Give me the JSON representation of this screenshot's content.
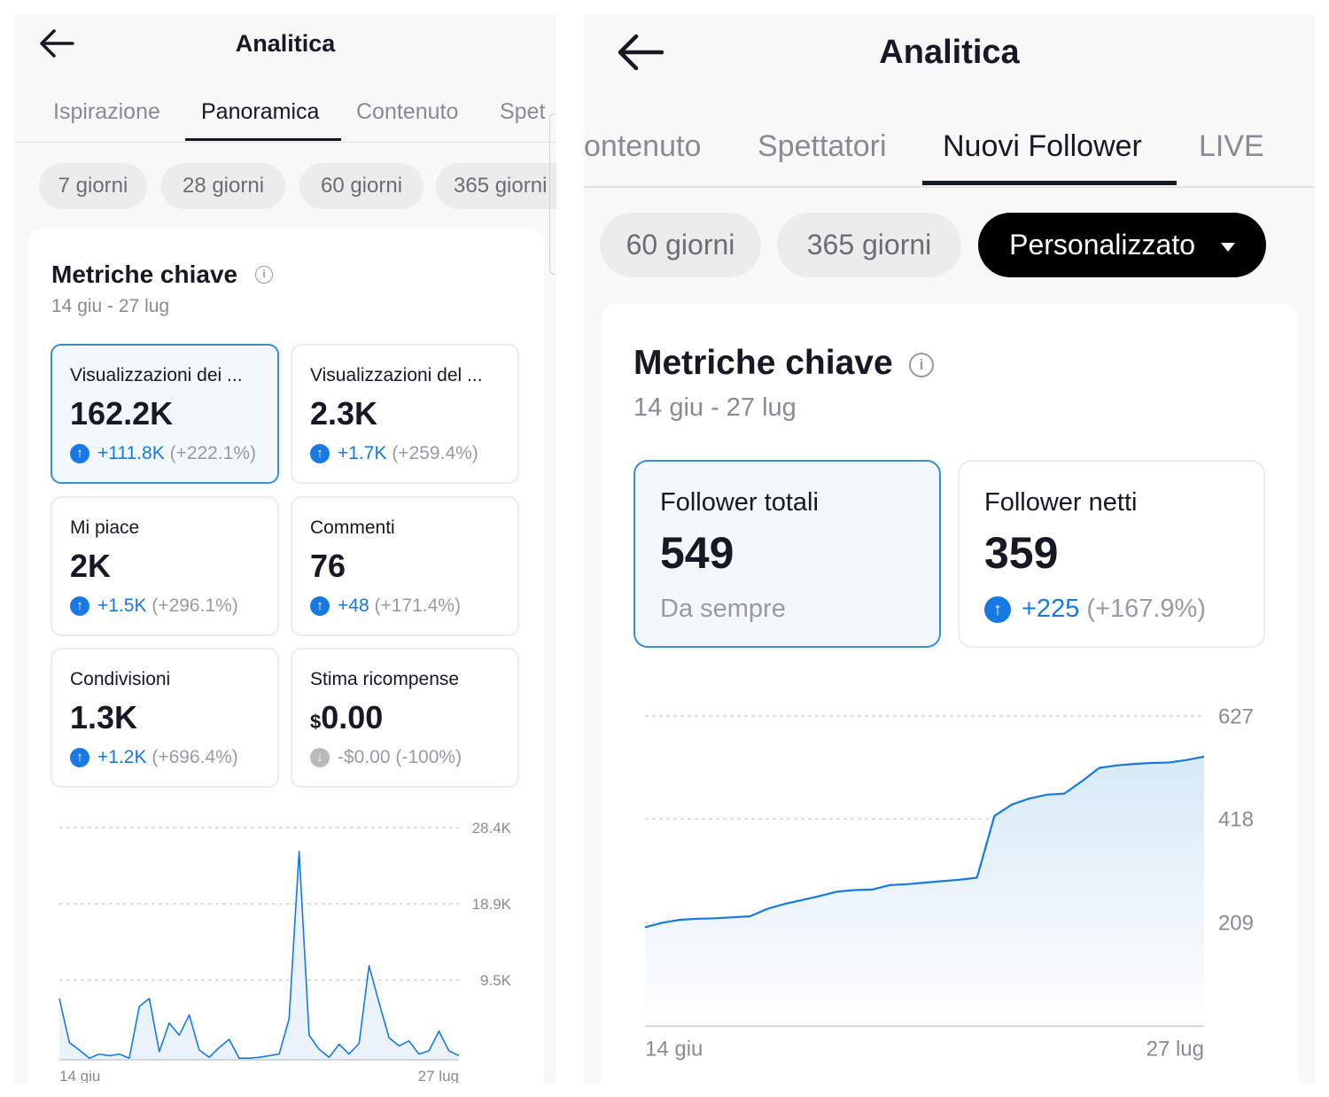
{
  "left": {
    "title": "Analitica",
    "tabs": [
      "Ispirazione",
      "Panoramica",
      "Contenuto",
      "Spet"
    ],
    "active_tab": 1,
    "chips": [
      "7 giorni",
      "28 giorni",
      "60 giorni",
      "365 giorni"
    ],
    "section_title": "Metriche chiave",
    "date_range": "14 giu - 27 lug",
    "metrics": [
      {
        "label": "Visualizzazioni dei ...",
        "value": "162.2K",
        "delta": "+111.8K",
        "pct": "(+222.1%)",
        "dir": "up",
        "selected": true
      },
      {
        "label": "Visualizzazioni del ...",
        "value": "2.3K",
        "delta": "+1.7K",
        "pct": "(+259.4%)",
        "dir": "up",
        "selected": false
      },
      {
        "label": "Mi piace",
        "value": "2K",
        "delta": "+1.5K",
        "pct": "(+296.1%)",
        "dir": "up",
        "selected": false
      },
      {
        "label": "Commenti",
        "value": "76",
        "delta": "+48",
        "pct": "(+171.4%)",
        "dir": "up",
        "selected": false
      },
      {
        "label": "Condivisioni",
        "value": "1.3K",
        "delta": "+1.2K",
        "pct": "(+696.4%)",
        "dir": "up",
        "selected": false
      },
      {
        "label": "Stima ricompense",
        "value_prefix": "$",
        "value": "0.00",
        "delta": "-$0.00 (-100%)",
        "pct": "",
        "dir": "down",
        "selected": false
      }
    ],
    "chart_data": {
      "type": "line",
      "x_start_label": "14 giu",
      "x_end_label": "27 lug",
      "y_ticks": [
        "28.4K",
        "18.9K",
        "9.5K"
      ],
      "ylim": [
        0,
        28400
      ],
      "series": [
        {
          "values": [
            7500,
            2100,
            1200,
            200,
            700,
            500,
            700,
            200,
            6500,
            7500,
            1000,
            4500,
            3000,
            5500,
            1200,
            300,
            1500,
            2500,
            200,
            200,
            300,
            500,
            700,
            5000,
            25500,
            3000,
            1300,
            300,
            1900,
            700,
            2000,
            11500,
            7000,
            2700,
            1700,
            2300,
            700,
            1100,
            3500,
            1100,
            500
          ]
        }
      ],
      "color": "#1779e4"
    }
  },
  "right": {
    "title": "Analitica",
    "tabs": [
      "ontenuto",
      "Spettatori",
      "Nuovi Follower",
      "LIVE"
    ],
    "active_tab": 2,
    "chips": [
      "60 giorni",
      "365 giorni"
    ],
    "custom_chip": "Personalizzato",
    "section_title": "Metriche chiave",
    "date_range": "14 giu - 27 lug",
    "metrics": [
      {
        "label": "Follower totali",
        "value": "549",
        "sub": "Da sempre",
        "selected": true
      },
      {
        "label": "Follower netti",
        "value": "359",
        "delta": "+225",
        "pct": "(+167.9%)",
        "dir": "up",
        "selected": false
      }
    ],
    "chart_data": {
      "type": "area",
      "x_start_label": "14 giu",
      "x_end_label": "27 lug",
      "y_ticks": [
        "627",
        "418",
        "209"
      ],
      "ylim": [
        0,
        627
      ],
      "series": [
        {
          "values": [
            200,
            209,
            215,
            217,
            218,
            220,
            222,
            237,
            247,
            255,
            263,
            272,
            275,
            276,
            285,
            287,
            290,
            293,
            296,
            300,
            425,
            448,
            460,
            468,
            470,
            495,
            522,
            527,
            530,
            532,
            533,
            538,
            545
          ]
        }
      ],
      "color": "#1779e4",
      "fill": "#d8e9f8"
    }
  }
}
